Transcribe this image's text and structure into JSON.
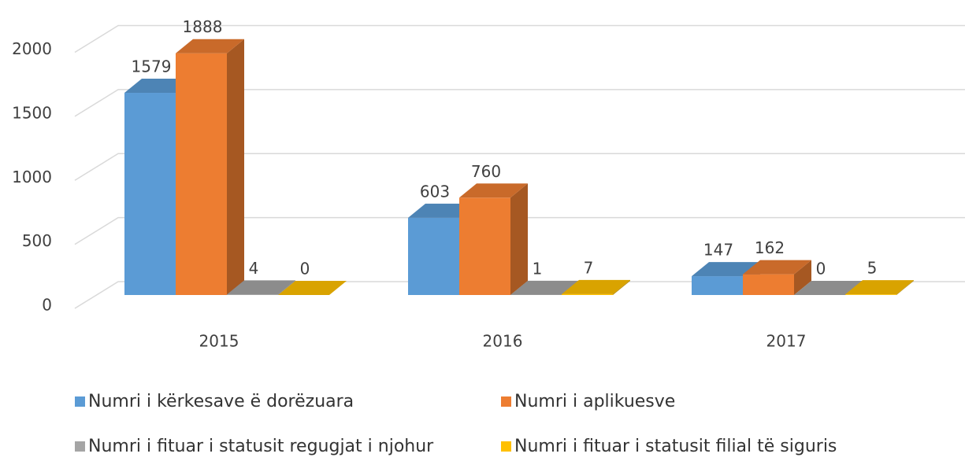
{
  "chart_data": {
    "type": "bar3d",
    "categories": [
      "2015",
      "2016",
      "2017"
    ],
    "series": [
      {
        "name": "Numri i kërkesave ë dorëzuara",
        "color": "#5b9bd5",
        "values": [
          1579,
          603,
          147
        ]
      },
      {
        "name": "Numri i aplikuesve",
        "color": "#ed7d31",
        "values": [
          1888,
          760,
          162
        ]
      },
      {
        "name": "Numri i fituar i statusit regugjat i njohur",
        "color": "#a5a5a5",
        "values": [
          4,
          1,
          0
        ]
      },
      {
        "name": "Numri i fituar i statusit filial të siguris",
        "color": "#ffc000",
        "values": [
          0,
          7,
          5
        ]
      }
    ],
    "ylim": [
      0,
      2000
    ],
    "yticks": [
      0,
      500,
      1000,
      1500,
      2000
    ],
    "grid": true
  }
}
